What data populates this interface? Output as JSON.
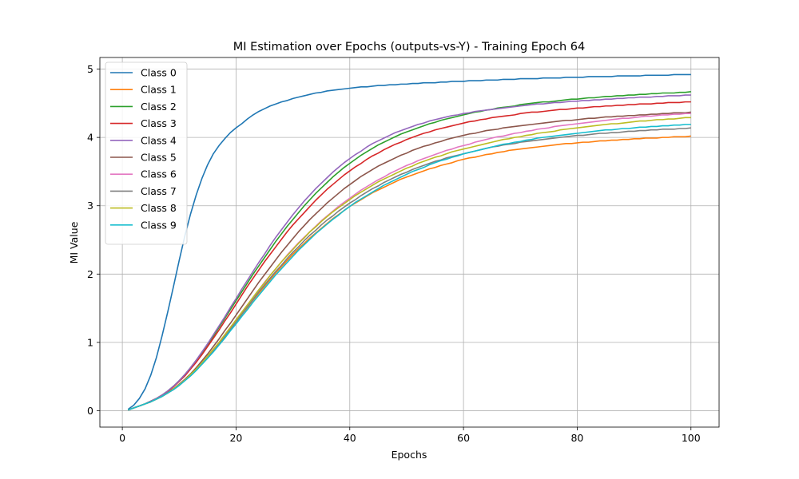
{
  "chart_data": {
    "type": "line",
    "title": "MI Estimation over Epochs (outputs-vs-Y) - Training Epoch 64",
    "xlabel": "Epochs",
    "ylabel": "MI Value",
    "xlim": [
      -3.95,
      104.95
    ],
    "ylim": [
      -0.24,
      5.17
    ],
    "xticks": [
      0,
      20,
      40,
      60,
      80,
      100
    ],
    "yticks": [
      0,
      1,
      2,
      3,
      4,
      5
    ],
    "grid": true,
    "legend_position": "upper-left",
    "x_start": 1,
    "x_end": 100,
    "series": [
      {
        "name": "Class 0",
        "color": "#1f77b4",
        "values": [
          0.02,
          0.08,
          0.18,
          0.32,
          0.52,
          0.78,
          1.1,
          1.45,
          1.82,
          2.2,
          2.56,
          2.88,
          3.16,
          3.4,
          3.6,
          3.76,
          3.88,
          3.98,
          4.07,
          4.14,
          4.2,
          4.27,
          4.33,
          4.38,
          4.42,
          4.46,
          4.49,
          4.52,
          4.54,
          4.57,
          4.59,
          4.61,
          4.63,
          4.65,
          4.66,
          4.68,
          4.69,
          4.7,
          4.71,
          4.72,
          4.73,
          4.74,
          4.74,
          4.75,
          4.76,
          4.76,
          4.77,
          4.77,
          4.78,
          4.78,
          4.79,
          4.79,
          4.8,
          4.8,
          4.8,
          4.81,
          4.81,
          4.82,
          4.82,
          4.82,
          4.83,
          4.83,
          4.83,
          4.84,
          4.84,
          4.84,
          4.85,
          4.85,
          4.85,
          4.86,
          4.86,
          4.86,
          4.86,
          4.87,
          4.87,
          4.87,
          4.87,
          4.88,
          4.88,
          4.88,
          4.88,
          4.89,
          4.89,
          4.89,
          4.89,
          4.89,
          4.9,
          4.9,
          4.9,
          4.9,
          4.9,
          4.91,
          4.91,
          4.91,
          4.91,
          4.91,
          4.92,
          4.92,
          4.92,
          4.92
        ]
      },
      {
        "name": "Class 1",
        "color": "#ff7f0e",
        "values": [
          0.01,
          0.04,
          0.07,
          0.1,
          0.13,
          0.17,
          0.21,
          0.26,
          0.32,
          0.38,
          0.45,
          0.53,
          0.61,
          0.7,
          0.79,
          0.89,
          0.99,
          1.09,
          1.2,
          1.3,
          1.41,
          1.51,
          1.62,
          1.72,
          1.82,
          1.92,
          2.02,
          2.11,
          2.2,
          2.29,
          2.37,
          2.45,
          2.53,
          2.6,
          2.67,
          2.74,
          2.81,
          2.87,
          2.93,
          2.99,
          3.04,
          3.09,
          3.14,
          3.19,
          3.23,
          3.27,
          3.31,
          3.35,
          3.39,
          3.42,
          3.45,
          3.48,
          3.51,
          3.54,
          3.56,
          3.59,
          3.61,
          3.63,
          3.66,
          3.68,
          3.7,
          3.71,
          3.73,
          3.75,
          3.76,
          3.78,
          3.79,
          3.81,
          3.82,
          3.83,
          3.84,
          3.85,
          3.86,
          3.87,
          3.88,
          3.89,
          3.9,
          3.91,
          3.91,
          3.92,
          3.93,
          3.93,
          3.94,
          3.95,
          3.95,
          3.96,
          3.96,
          3.97,
          3.97,
          3.98,
          3.98,
          3.99,
          3.99,
          3.99,
          4.0,
          4.0,
          4.01,
          4.01,
          4.01,
          4.02
        ]
      },
      {
        "name": "Class 2",
        "color": "#2ca02c",
        "values": [
          0.01,
          0.04,
          0.07,
          0.1,
          0.14,
          0.18,
          0.23,
          0.29,
          0.36,
          0.44,
          0.53,
          0.63,
          0.74,
          0.85,
          0.97,
          1.09,
          1.22,
          1.35,
          1.48,
          1.61,
          1.74,
          1.87,
          2.0,
          2.12,
          2.24,
          2.36,
          2.48,
          2.59,
          2.7,
          2.8,
          2.9,
          3.0,
          3.09,
          3.18,
          3.26,
          3.34,
          3.42,
          3.49,
          3.56,
          3.62,
          3.68,
          3.74,
          3.79,
          3.84,
          3.89,
          3.93,
          3.97,
          4.01,
          4.05,
          4.08,
          4.11,
          4.14,
          4.17,
          4.2,
          4.22,
          4.25,
          4.27,
          4.29,
          4.31,
          4.33,
          4.35,
          4.37,
          4.38,
          4.4,
          4.41,
          4.43,
          4.44,
          4.45,
          4.46,
          4.48,
          4.49,
          4.5,
          4.51,
          4.52,
          4.52,
          4.53,
          4.54,
          4.55,
          4.56,
          4.56,
          4.57,
          4.58,
          4.58,
          4.59,
          4.6,
          4.6,
          4.61,
          4.61,
          4.62,
          4.62,
          4.63,
          4.63,
          4.64,
          4.64,
          4.65,
          4.65,
          4.65,
          4.66,
          4.66,
          4.67
        ]
      },
      {
        "name": "Class 3",
        "color": "#d62728",
        "values": [
          0.01,
          0.04,
          0.07,
          0.1,
          0.14,
          0.18,
          0.23,
          0.28,
          0.35,
          0.43,
          0.51,
          0.61,
          0.71,
          0.82,
          0.94,
          1.06,
          1.18,
          1.31,
          1.43,
          1.56,
          1.69,
          1.82,
          1.94,
          2.06,
          2.18,
          2.29,
          2.4,
          2.51,
          2.62,
          2.72,
          2.81,
          2.9,
          2.99,
          3.08,
          3.16,
          3.24,
          3.31,
          3.38,
          3.45,
          3.51,
          3.57,
          3.62,
          3.68,
          3.73,
          3.77,
          3.82,
          3.86,
          3.9,
          3.93,
          3.97,
          4.0,
          4.03,
          4.06,
          4.08,
          4.11,
          4.13,
          4.15,
          4.17,
          4.19,
          4.21,
          4.23,
          4.24,
          4.26,
          4.27,
          4.29,
          4.3,
          4.31,
          4.32,
          4.33,
          4.35,
          4.36,
          4.37,
          4.37,
          4.38,
          4.39,
          4.4,
          4.41,
          4.41,
          4.42,
          4.43,
          4.43,
          4.44,
          4.45,
          4.45,
          4.46,
          4.46,
          4.47,
          4.47,
          4.48,
          4.48,
          4.49,
          4.49,
          4.49,
          4.5,
          4.5,
          4.51,
          4.51,
          4.51,
          4.52,
          4.52
        ]
      },
      {
        "name": "Class 4",
        "color": "#9467bd",
        "values": [
          0.01,
          0.04,
          0.07,
          0.1,
          0.14,
          0.18,
          0.23,
          0.29,
          0.36,
          0.44,
          0.53,
          0.63,
          0.74,
          0.86,
          0.98,
          1.11,
          1.24,
          1.37,
          1.51,
          1.64,
          1.78,
          1.91,
          2.04,
          2.17,
          2.29,
          2.42,
          2.54,
          2.65,
          2.76,
          2.87,
          2.97,
          3.07,
          3.16,
          3.25,
          3.33,
          3.41,
          3.49,
          3.56,
          3.63,
          3.69,
          3.75,
          3.8,
          3.86,
          3.91,
          3.95,
          3.99,
          4.03,
          4.07,
          4.1,
          4.13,
          4.16,
          4.19,
          4.21,
          4.24,
          4.26,
          4.28,
          4.3,
          4.32,
          4.33,
          4.35,
          4.36,
          4.38,
          4.39,
          4.4,
          4.41,
          4.42,
          4.43,
          4.44,
          4.45,
          4.46,
          4.47,
          4.48,
          4.49,
          4.49,
          4.5,
          4.51,
          4.51,
          4.52,
          4.53,
          4.53,
          4.54,
          4.54,
          4.55,
          4.55,
          4.56,
          4.56,
          4.57,
          4.57,
          4.58,
          4.58,
          4.59,
          4.59,
          4.59,
          4.6,
          4.6,
          4.61,
          4.61,
          4.61,
          4.62,
          4.62
        ]
      },
      {
        "name": "Class 5",
        "color": "#8c564b",
        "values": [
          0.01,
          0.04,
          0.07,
          0.1,
          0.13,
          0.17,
          0.21,
          0.26,
          0.32,
          0.39,
          0.46,
          0.54,
          0.63,
          0.73,
          0.83,
          0.94,
          1.05,
          1.17,
          1.28,
          1.4,
          1.52,
          1.64,
          1.76,
          1.88,
          1.99,
          2.1,
          2.21,
          2.32,
          2.42,
          2.52,
          2.62,
          2.71,
          2.8,
          2.88,
          2.96,
          3.04,
          3.11,
          3.18,
          3.25,
          3.31,
          3.37,
          3.43,
          3.48,
          3.53,
          3.58,
          3.62,
          3.66,
          3.7,
          3.74,
          3.77,
          3.81,
          3.84,
          3.87,
          3.89,
          3.92,
          3.94,
          3.97,
          3.99,
          4.01,
          4.03,
          4.05,
          4.06,
          4.08,
          4.1,
          4.11,
          4.12,
          4.14,
          4.15,
          4.16,
          4.17,
          4.18,
          4.19,
          4.2,
          4.21,
          4.22,
          4.23,
          4.24,
          4.25,
          4.25,
          4.26,
          4.27,
          4.28,
          4.28,
          4.29,
          4.3,
          4.3,
          4.31,
          4.31,
          4.32,
          4.32,
          4.33,
          4.33,
          4.34,
          4.34,
          4.35,
          4.35,
          4.36,
          4.36,
          4.36,
          4.37
        ]
      },
      {
        "name": "Class 6",
        "color": "#e377c2",
        "values": [
          0.01,
          0.04,
          0.07,
          0.1,
          0.13,
          0.17,
          0.21,
          0.26,
          0.31,
          0.38,
          0.45,
          0.52,
          0.61,
          0.7,
          0.79,
          0.89,
          1.0,
          1.11,
          1.22,
          1.33,
          1.44,
          1.55,
          1.66,
          1.77,
          1.88,
          1.98,
          2.08,
          2.18,
          2.28,
          2.37,
          2.46,
          2.54,
          2.62,
          2.7,
          2.78,
          2.85,
          2.92,
          2.99,
          3.05,
          3.11,
          3.17,
          3.23,
          3.28,
          3.33,
          3.38,
          3.42,
          3.47,
          3.51,
          3.55,
          3.59,
          3.62,
          3.66,
          3.69,
          3.72,
          3.75,
          3.78,
          3.81,
          3.83,
          3.86,
          3.88,
          3.9,
          3.93,
          3.95,
          3.97,
          3.99,
          4.01,
          4.02,
          4.04,
          4.06,
          4.07,
          4.09,
          4.1,
          4.12,
          4.13,
          4.14,
          4.16,
          4.17,
          4.18,
          4.19,
          4.2,
          4.21,
          4.22,
          4.23,
          4.24,
          4.25,
          4.26,
          4.27,
          4.28,
          4.28,
          4.29,
          4.3,
          4.31,
          4.31,
          4.32,
          4.33,
          4.33,
          4.34,
          4.34,
          4.35,
          4.35
        ]
      },
      {
        "name": "Class 7",
        "color": "#7f7f7f",
        "values": [
          0.01,
          0.04,
          0.07,
          0.1,
          0.13,
          0.17,
          0.21,
          0.26,
          0.31,
          0.37,
          0.44,
          0.51,
          0.59,
          0.68,
          0.77,
          0.87,
          0.97,
          1.08,
          1.19,
          1.3,
          1.41,
          1.52,
          1.63,
          1.74,
          1.84,
          1.94,
          2.04,
          2.13,
          2.23,
          2.32,
          2.4,
          2.49,
          2.57,
          2.64,
          2.72,
          2.79,
          2.85,
          2.92,
          2.98,
          3.04,
          3.09,
          3.15,
          3.2,
          3.25,
          3.29,
          3.34,
          3.38,
          3.42,
          3.46,
          3.49,
          3.53,
          3.56,
          3.59,
          3.62,
          3.65,
          3.67,
          3.7,
          3.72,
          3.74,
          3.76,
          3.78,
          3.8,
          3.82,
          3.84,
          3.86,
          3.87,
          3.89,
          3.9,
          3.91,
          3.93,
          3.94,
          3.95,
          3.96,
          3.97,
          3.98,
          3.99,
          4.0,
          4.01,
          4.02,
          4.03,
          4.03,
          4.04,
          4.05,
          4.06,
          4.06,
          4.07,
          4.07,
          4.08,
          4.09,
          4.09,
          4.1,
          4.1,
          4.11,
          4.11,
          4.12,
          4.12,
          4.12,
          4.13,
          4.13,
          4.14
        ]
      },
      {
        "name": "Class 8",
        "color": "#bcbd22",
        "values": [
          0.01,
          0.04,
          0.07,
          0.1,
          0.13,
          0.17,
          0.21,
          0.26,
          0.32,
          0.38,
          0.45,
          0.53,
          0.61,
          0.7,
          0.8,
          0.9,
          1.0,
          1.11,
          1.22,
          1.33,
          1.44,
          1.55,
          1.66,
          1.77,
          1.87,
          1.98,
          2.08,
          2.18,
          2.27,
          2.36,
          2.45,
          2.53,
          2.62,
          2.69,
          2.77,
          2.84,
          2.91,
          2.97,
          3.03,
          3.09,
          3.15,
          3.2,
          3.25,
          3.3,
          3.35,
          3.39,
          3.43,
          3.47,
          3.51,
          3.55,
          3.58,
          3.62,
          3.65,
          3.68,
          3.71,
          3.73,
          3.76,
          3.79,
          3.81,
          3.83,
          3.85,
          3.87,
          3.89,
          3.91,
          3.93,
          3.95,
          3.97,
          3.98,
          4.0,
          4.01,
          4.03,
          4.04,
          4.06,
          4.07,
          4.08,
          4.09,
          4.11,
          4.12,
          4.13,
          4.14,
          4.15,
          4.16,
          4.17,
          4.18,
          4.19,
          4.2,
          4.2,
          4.21,
          4.22,
          4.23,
          4.24,
          4.24,
          4.25,
          4.26,
          4.26,
          4.27,
          4.27,
          4.28,
          4.29,
          4.29
        ]
      },
      {
        "name": "Class 9",
        "color": "#17becf",
        "values": [
          0.01,
          0.04,
          0.07,
          0.1,
          0.13,
          0.17,
          0.21,
          0.26,
          0.31,
          0.37,
          0.44,
          0.51,
          0.59,
          0.68,
          0.77,
          0.86,
          0.96,
          1.06,
          1.17,
          1.27,
          1.38,
          1.48,
          1.59,
          1.69,
          1.79,
          1.89,
          1.99,
          2.08,
          2.17,
          2.26,
          2.35,
          2.43,
          2.51,
          2.59,
          2.66,
          2.73,
          2.8,
          2.86,
          2.93,
          2.99,
          3.05,
          3.1,
          3.15,
          3.2,
          3.25,
          3.3,
          3.34,
          3.38,
          3.42,
          3.46,
          3.5,
          3.53,
          3.56,
          3.6,
          3.63,
          3.66,
          3.68,
          3.71,
          3.73,
          3.76,
          3.78,
          3.8,
          3.82,
          3.84,
          3.86,
          3.88,
          3.9,
          3.91,
          3.93,
          3.94,
          3.96,
          3.97,
          3.99,
          4.0,
          4.01,
          4.02,
          4.03,
          4.04,
          4.05,
          4.06,
          4.07,
          4.08,
          4.09,
          4.1,
          4.11,
          4.11,
          4.12,
          4.13,
          4.13,
          4.14,
          4.15,
          4.15,
          4.16,
          4.16,
          4.17,
          4.17,
          4.18,
          4.18,
          4.19,
          4.19
        ]
      }
    ]
  }
}
